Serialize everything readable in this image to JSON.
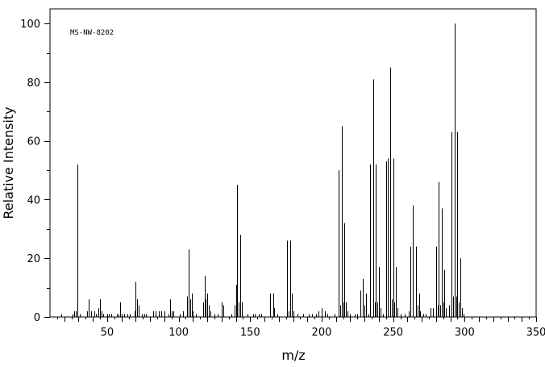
{
  "chart_data": {
    "type": "bar",
    "annotation": "MS-NW-8202",
    "xlabel": "m/z",
    "ylabel": "Relative Intensity",
    "xlim": [
      10,
      350
    ],
    "ylim": [
      0,
      105
    ],
    "xticks": [
      50,
      100,
      150,
      200,
      250,
      300,
      350
    ],
    "yticks": [
      0,
      20,
      40,
      60,
      80,
      100
    ],
    "grid": false,
    "peaks": [
      [
        18,
        1
      ],
      [
        26,
        1
      ],
      [
        27,
        2
      ],
      [
        28,
        2
      ],
      [
        29,
        52
      ],
      [
        31,
        1
      ],
      [
        36,
        2
      ],
      [
        37,
        6
      ],
      [
        39,
        2
      ],
      [
        41,
        2
      ],
      [
        42,
        1
      ],
      [
        44,
        3
      ],
      [
        45,
        6
      ],
      [
        46,
        2
      ],
      [
        47,
        1
      ],
      [
        50,
        1
      ],
      [
        51,
        1
      ],
      [
        53,
        1
      ],
      [
        57,
        1
      ],
      [
        58,
        1
      ],
      [
        59,
        5
      ],
      [
        60,
        1
      ],
      [
        62,
        1
      ],
      [
        64,
        1
      ],
      [
        66,
        1
      ],
      [
        69,
        2
      ],
      [
        70,
        12
      ],
      [
        71,
        6
      ],
      [
        72,
        4
      ],
      [
        74,
        1
      ],
      [
        76,
        1
      ],
      [
        77,
        1
      ],
      [
        82,
        2
      ],
      [
        84,
        2
      ],
      [
        86,
        2
      ],
      [
        88,
        2
      ],
      [
        90,
        2
      ],
      [
        93,
        1
      ],
      [
        94,
        6
      ],
      [
        95,
        2
      ],
      [
        96,
        2
      ],
      [
        101,
        1
      ],
      [
        103,
        2
      ],
      [
        106,
        7
      ],
      [
        107,
        23
      ],
      [
        108,
        6
      ],
      [
        109,
        8
      ],
      [
        110,
        2
      ],
      [
        112,
        1
      ],
      [
        117,
        5
      ],
      [
        118,
        14
      ],
      [
        119,
        6
      ],
      [
        120,
        8
      ],
      [
        121,
        4
      ],
      [
        122,
        2
      ],
      [
        125,
        1
      ],
      [
        127,
        1
      ],
      [
        130,
        5
      ],
      [
        131,
        4
      ],
      [
        137,
        1
      ],
      [
        139,
        4
      ],
      [
        140,
        11
      ],
      [
        141,
        45
      ],
      [
        142,
        5
      ],
      [
        143,
        28
      ],
      [
        144,
        5
      ],
      [
        148,
        1
      ],
      [
        152,
        1
      ],
      [
        153,
        1
      ],
      [
        156,
        1
      ],
      [
        158,
        1
      ],
      [
        164,
        8
      ],
      [
        166,
        8
      ],
      [
        167,
        3
      ],
      [
        169,
        1
      ],
      [
        176,
        26
      ],
      [
        177,
        2
      ],
      [
        178,
        26
      ],
      [
        179,
        8
      ],
      [
        180,
        2
      ],
      [
        183,
        1
      ],
      [
        187,
        1
      ],
      [
        191,
        1
      ],
      [
        193,
        1
      ],
      [
        196,
        1
      ],
      [
        198,
        2
      ],
      [
        200,
        3
      ],
      [
        202,
        2
      ],
      [
        204,
        1
      ],
      [
        209,
        1
      ],
      [
        212,
        50
      ],
      [
        213,
        4
      ],
      [
        214,
        65
      ],
      [
        215,
        5
      ],
      [
        216,
        32
      ],
      [
        217,
        5
      ],
      [
        218,
        2
      ],
      [
        220,
        1
      ],
      [
        223,
        1
      ],
      [
        225,
        1
      ],
      [
        227,
        9
      ],
      [
        229,
        13
      ],
      [
        230,
        4
      ],
      [
        231,
        8
      ],
      [
        233,
        1
      ],
      [
        234,
        52
      ],
      [
        236,
        81
      ],
      [
        237,
        5
      ],
      [
        238,
        52
      ],
      [
        239,
        5
      ],
      [
        240,
        17
      ],
      [
        241,
        3
      ],
      [
        243,
        1
      ],
      [
        245,
        53
      ],
      [
        246,
        54
      ],
      [
        248,
        85
      ],
      [
        249,
        6
      ],
      [
        250,
        54
      ],
      [
        251,
        5
      ],
      [
        252,
        17
      ],
      [
        253,
        3
      ],
      [
        255,
        1
      ],
      [
        258,
        1
      ],
      [
        261,
        2
      ],
      [
        262,
        24
      ],
      [
        264,
        38
      ],
      [
        266,
        24
      ],
      [
        267,
        4
      ],
      [
        268,
        8
      ],
      [
        269,
        2
      ],
      [
        271,
        1
      ],
      [
        273,
        1
      ],
      [
        276,
        3
      ],
      [
        278,
        3
      ],
      [
        280,
        24
      ],
      [
        281,
        4
      ],
      [
        282,
        46
      ],
      [
        283,
        4
      ],
      [
        284,
        37
      ],
      [
        285,
        5
      ],
      [
        286,
        16
      ],
      [
        287,
        3
      ],
      [
        289,
        4
      ],
      [
        291,
        63
      ],
      [
        292,
        7
      ],
      [
        293,
        100
      ],
      [
        294,
        7
      ],
      [
        295,
        63
      ],
      [
        296,
        5
      ],
      [
        297,
        20
      ],
      [
        298,
        3
      ],
      [
        299,
        1
      ]
    ]
  }
}
